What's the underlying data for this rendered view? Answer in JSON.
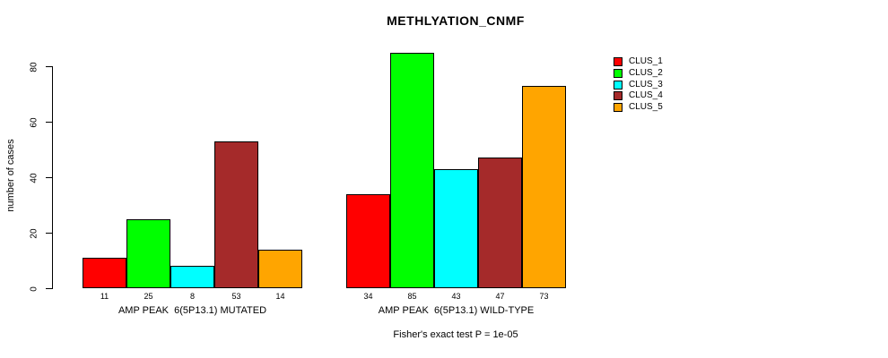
{
  "title": "METHLYATION_CNMF",
  "footer": "Fisher's exact test P = 1e-05",
  "chart_data": {
    "type": "bar",
    "title": "METHLYATION_CNMF",
    "xlabel": "",
    "ylabel": "number of cases",
    "ylim": [
      0,
      85
    ],
    "yticks": [
      0,
      20,
      40,
      60,
      80
    ],
    "grid": false,
    "legend_position": "right",
    "series": [
      {
        "name": "CLUS_1",
        "color": "#ff0000",
        "values": [
          11,
          34
        ]
      },
      {
        "name": "CLUS_2",
        "color": "#00ff00",
        "values": [
          25,
          85
        ]
      },
      {
        "name": "CLUS_3",
        "color": "#00ffff",
        "values": [
          8,
          43
        ]
      },
      {
        "name": "CLUS_4",
        "color": "#a52a2a",
        "values": [
          53,
          47
        ]
      },
      {
        "name": "CLUS_5",
        "color": "#ffa500",
        "values": [
          14,
          73
        ]
      }
    ],
    "groups": [
      {
        "label": "AMP PEAK  6(5P13.1) MUTATED",
        "values": [
          11,
          25,
          8,
          53,
          14
        ]
      },
      {
        "label": "AMP PEAK  6(5P13.1) WILD-TYPE",
        "values": [
          34,
          85,
          43,
          47,
          73
        ]
      }
    ],
    "annotation": "Fisher's exact test P = 1e-05",
    "bar_border_color": "#000000",
    "value_labels_shown": true
  }
}
